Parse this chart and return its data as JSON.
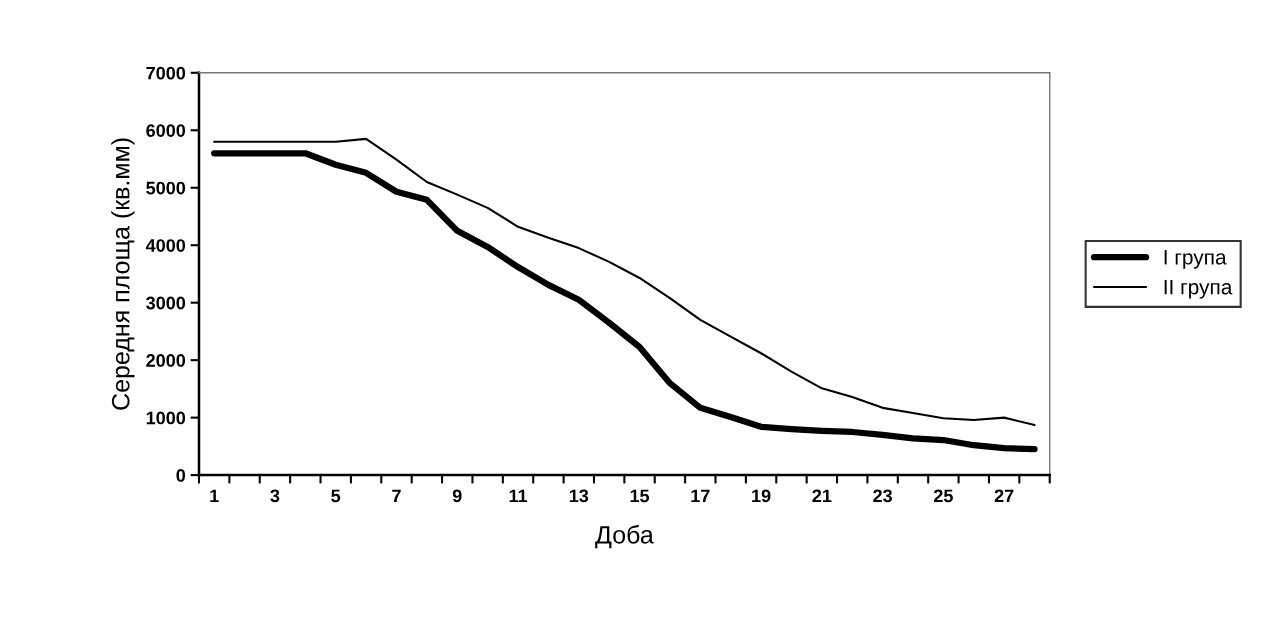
{
  "chart_data": {
    "type": "line",
    "xlabel": "Доба",
    "ylabel": "Середня площа (кв.мм)",
    "categories": [
      "1",
      null,
      "3",
      null,
      "5",
      null,
      "7",
      null,
      "9",
      null,
      "11",
      null,
      "13",
      null,
      "15",
      null,
      "17",
      null,
      "19",
      null,
      "21",
      null,
      "23",
      null,
      "25",
      null,
      "27",
      null
    ],
    "series": [
      {
        "name": "I група",
        "color": "#000000",
        "values": [
          5600,
          5600,
          5600,
          5600,
          5400,
          5260,
          4930,
          4790,
          4250,
          3970,
          3620,
          3310,
          3050,
          2650,
          2230,
          1600,
          1170,
          1010,
          840,
          800,
          770,
          750,
          700,
          640,
          610,
          520,
          470,
          450
        ]
      },
      {
        "name": "II група",
        "color": "#000000",
        "values": [
          5800,
          5800,
          5800,
          5800,
          5800,
          5850,
          5490,
          5100,
          4880,
          4650,
          4320,
          4130,
          3950,
          3710,
          3430,
          3080,
          2700,
          2410,
          2120,
          1800,
          1510,
          1360,
          1170,
          1080,
          990,
          960,
          1000,
          870
        ]
      }
    ],
    "ylim": [
      0,
      7000
    ],
    "yticks": [
      0,
      1000,
      2000,
      3000,
      4000,
      5000,
      6000,
      7000
    ],
    "legend": "right",
    "grid": false,
    "marker": "none",
    "line_style": "solid"
  }
}
